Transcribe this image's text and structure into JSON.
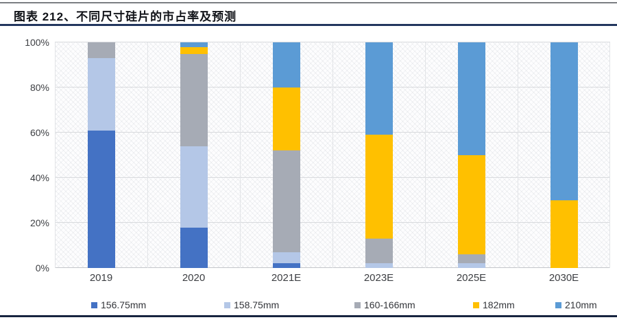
{
  "figure": {
    "title": "图表  212、不同尺寸硅片的市占率及预测"
  },
  "chart_data": {
    "type": "bar",
    "stacked": true,
    "percent_stacked": true,
    "title": "图表 212、不同尺寸硅片的市占率及预测",
    "categories": [
      "2019",
      "2020",
      "2021E",
      "2023E",
      "2025E",
      "2030E"
    ],
    "series": [
      {
        "name": "156.75mm",
        "color": "#4472C4",
        "values": [
          61,
          18,
          2,
          0,
          0,
          0
        ]
      },
      {
        "name": "158.75mm",
        "color": "#B4C7E7",
        "values": [
          32,
          36,
          5,
          2,
          2,
          0
        ]
      },
      {
        "name": "160-166mm",
        "color": "#A6ABB5",
        "values": [
          7,
          41,
          45,
          11,
          4,
          0
        ]
      },
      {
        "name": "182mm",
        "color": "#FFC000",
        "values": [
          0,
          3,
          28,
          46,
          44,
          30
        ]
      },
      {
        "name": "210mm",
        "color": "#5B9BD5",
        "values": [
          0,
          2,
          20,
          41,
          50,
          70
        ]
      }
    ],
    "xlabel": "",
    "ylabel": "",
    "ylim": [
      0,
      100
    ],
    "yticks": [
      "0%",
      "20%",
      "40%",
      "60%",
      "80%",
      "100%"
    ],
    "ytick_values": [
      0,
      20,
      40,
      60,
      80,
      100
    ],
    "grid": true,
    "legend_position": "bottom"
  }
}
